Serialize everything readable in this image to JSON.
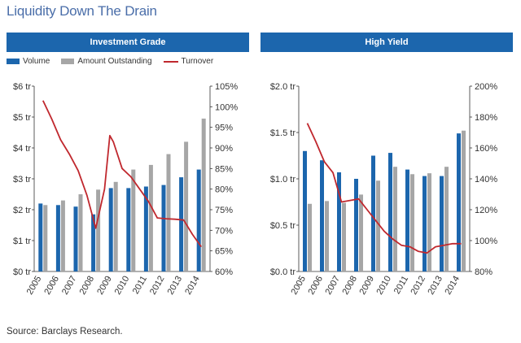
{
  "title": "Liquidity Down The Drain",
  "source": "Source: Barclays Research.",
  "colors": {
    "header": "#1c66ad",
    "volume": "#1c66ad",
    "outstanding": "#a6a6a6",
    "turnover": "#c0282e",
    "title": "#4a6ea9"
  },
  "legend": {
    "volume": "Volume",
    "outstanding": "Amount Outstanding",
    "turnover": "Turnover"
  },
  "chart_data": [
    {
      "type": "bar",
      "title": "Investment Grade",
      "categories": [
        "2005",
        "2006",
        "2007",
        "2008",
        "2009",
        "2010",
        "2011",
        "2012",
        "2013",
        "2014"
      ],
      "ylim": [
        0,
        6
      ],
      "y2lim": [
        60,
        105
      ],
      "y_ticks": [
        "$0 tr",
        "$1 tr",
        "$2 tr",
        "$3 tr",
        "$4 tr",
        "$5 tr",
        "$6 tr"
      ],
      "y2_ticks": [
        "60%",
        "65%",
        "70%",
        "75%",
        "80%",
        "85%",
        "90%",
        "95%",
        "100%",
        "105%"
      ],
      "series": [
        {
          "name": "Volume",
          "axis": "left",
          "values": [
            2.2,
            2.15,
            2.1,
            1.85,
            2.7,
            2.7,
            2.75,
            2.8,
            3.05,
            3.3
          ]
        },
        {
          "name": "Amount Outstanding",
          "axis": "left",
          "values": [
            2.15,
            2.3,
            2.5,
            2.65,
            2.9,
            3.3,
            3.45,
            3.8,
            4.2,
            4.95
          ]
        },
        {
          "name": "Turnover",
          "axis": "right",
          "type": "line",
          "x": [
            0,
            0.5,
            1,
            1.5,
            2,
            2.5,
            3,
            3.5,
            3.8,
            4,
            4.5,
            5,
            5.5,
            6,
            6.5,
            7,
            7.5,
            8,
            8.5,
            9
          ],
          "values": [
            101.5,
            97,
            92,
            88.5,
            84.5,
            78.5,
            70.5,
            80,
            93,
            91.5,
            85,
            83,
            80,
            77,
            73,
            72.8,
            72.7,
            72.5,
            69,
            66
          ]
        }
      ]
    },
    {
      "type": "bar",
      "title": "High Yield",
      "categories": [
        "2005",
        "2006",
        "2007",
        "2008",
        "2009",
        "2010",
        "2011",
        "2012",
        "2013",
        "2014"
      ],
      "ylim": [
        0,
        2
      ],
      "y2lim": [
        80,
        200
      ],
      "y_ticks": [
        "$0.0 tr",
        "$0.5 tr",
        "$1.0 tr",
        "$1.5 tr",
        "$2.0 tr"
      ],
      "y2_ticks": [
        "80%",
        "100%",
        "120%",
        "140%",
        "160%",
        "180%",
        "200%"
      ],
      "series": [
        {
          "name": "Volume",
          "axis": "left",
          "values": [
            1.3,
            1.2,
            1.07,
            1.0,
            1.25,
            1.28,
            1.1,
            1.03,
            1.03,
            1.49
          ]
        },
        {
          "name": "Amount Outstanding",
          "axis": "left",
          "values": [
            0.73,
            0.76,
            0.74,
            0.83,
            0.98,
            1.13,
            1.05,
            1.06,
            1.13,
            1.52
          ]
        },
        {
          "name": "Turnover",
          "axis": "right",
          "type": "line",
          "x": [
            0,
            0.5,
            1,
            1.5,
            2,
            2.5,
            3,
            3.5,
            4,
            4.5,
            5,
            5.5,
            6,
            6.5,
            7,
            7.5,
            8,
            8.5,
            9
          ],
          "values": [
            176,
            164,
            151,
            144,
            125,
            126,
            127,
            120,
            113,
            106,
            101,
            97,
            96,
            93,
            92,
            96,
            97,
            98,
            98
          ]
        }
      ]
    }
  ]
}
